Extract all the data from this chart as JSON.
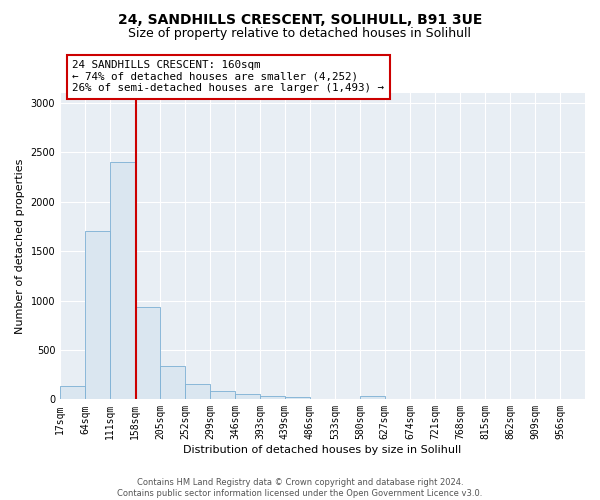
{
  "title_line1": "24, SANDHILLS CRESCENT, SOLIHULL, B91 3UE",
  "title_line2": "Size of property relative to detached houses in Solihull",
  "xlabel": "Distribution of detached houses by size in Solihull",
  "ylabel": "Number of detached properties",
  "bar_color": "#dae6f0",
  "bar_edge_color": "#7bafd4",
  "annotation_line_color": "#cc0000",
  "annotation_text": "24 SANDHILLS CRESCENT: 160sqm\n← 74% of detached houses are smaller (4,252)\n26% of semi-detached houses are larger (1,493) →",
  "property_size_sqm": 160,
  "categories": [
    "17sqm",
    "64sqm",
    "111sqm",
    "158sqm",
    "205sqm",
    "252sqm",
    "299sqm",
    "346sqm",
    "393sqm",
    "439sqm",
    "486sqm",
    "533sqm",
    "580sqm",
    "627sqm",
    "674sqm",
    "721sqm",
    "768sqm",
    "815sqm",
    "862sqm",
    "909sqm",
    "956sqm"
  ],
  "values": [
    130,
    1700,
    2400,
    930,
    340,
    155,
    85,
    50,
    38,
    27,
    0,
    0,
    30,
    0,
    0,
    0,
    0,
    0,
    0,
    0,
    0
  ],
  "bin_edges": [
    17,
    64,
    111,
    158,
    205,
    252,
    299,
    346,
    393,
    439,
    486,
    533,
    580,
    627,
    674,
    721,
    768,
    815,
    862,
    909,
    956,
    1003
  ],
  "ylim": [
    0,
    3100
  ],
  "yticks": [
    0,
    500,
    1000,
    1500,
    2000,
    2500,
    3000
  ],
  "footer_text": "Contains HM Land Registry data © Crown copyright and database right 2024.\nContains public sector information licensed under the Open Government Licence v3.0.",
  "fig_bg_color": "#ffffff",
  "plot_bg_color": "#e8eef4",
  "grid_color": "#ffffff",
  "title1_fontsize": 10,
  "title2_fontsize": 9,
  "ylabel_fontsize": 8,
  "xlabel_fontsize": 8,
  "tick_fontsize": 7,
  "footer_fontsize": 6
}
